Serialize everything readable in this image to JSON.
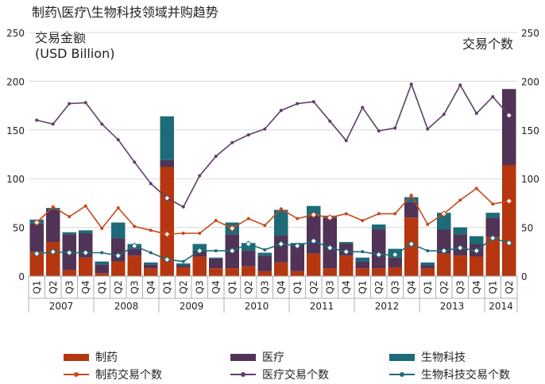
{
  "chart_data": {
    "type": "bar",
    "title": "制药\\医疗\\生物科技领域并购趋势",
    "ylabel_left": [
      "交易金额",
      "(USD Billion)"
    ],
    "ylabel_right": "交易个数",
    "ylim_left": [
      0,
      250
    ],
    "ylim_right": [
      0,
      250
    ],
    "yticks_left": [
      "0",
      "50",
      "100",
      "150",
      "200",
      "250"
    ],
    "yticks_right": [
      "0",
      "50",
      "100",
      "150",
      "200",
      "250"
    ],
    "stacked": true,
    "categories": [
      "Q1",
      "Q2",
      "Q3",
      "Q4",
      "Q1",
      "Q2",
      "Q3",
      "Q4",
      "Q1",
      "Q2",
      "Q3",
      "Q4",
      "Q1",
      "Q2",
      "Q3",
      "Q4",
      "Q1",
      "Q2",
      "Q3",
      "Q4",
      "Q1",
      "Q2",
      "Q3",
      "Q4",
      "Q1",
      "Q2",
      "Q3",
      "Q4",
      "Q1",
      "Q2"
    ],
    "year_groups": [
      {
        "label": "2007",
        "count": 4
      },
      {
        "label": "2008",
        "count": 4
      },
      {
        "label": "2009",
        "count": 4
      },
      {
        "label": "2010",
        "count": 4
      },
      {
        "label": "2011",
        "count": 4
      },
      {
        "label": "2012",
        "count": 4
      },
      {
        "label": "2013",
        "count": 4
      },
      {
        "label": "2014",
        "count": 2
      }
    ],
    "bar_series": [
      {
        "name": "制药",
        "color": "#b5360f",
        "values": [
          25,
          35,
          6,
          19,
          3,
          15,
          21,
          8,
          112,
          9,
          20,
          8,
          8,
          10,
          5,
          14,
          5,
          23,
          8,
          21,
          8,
          8,
          9,
          60,
          8,
          23,
          21,
          20,
          40,
          114
        ]
      },
      {
        "name": "医疗",
        "color": "#503356",
        "values": [
          29,
          33,
          37,
          25,
          9,
          24,
          7,
          4,
          7,
          2,
          6,
          10,
          35,
          16,
          16,
          28,
          28,
          40,
          52,
          12,
          7,
          40,
          10,
          16,
          3,
          25,
          22,
          13,
          20,
          78
        ]
      },
      {
        "name": "生物科技",
        "color": "#1d6b78",
        "values": [
          4,
          2,
          2,
          3,
          3,
          16,
          5,
          2,
          45,
          2,
          7,
          1,
          12,
          8,
          3,
          26,
          1,
          9,
          2,
          2,
          4,
          5,
          9,
          5,
          3,
          17,
          7,
          8,
          5,
          0
        ]
      }
    ],
    "line_series": [
      {
        "name": "制药交易个数",
        "color": "#c8491c",
        "values": [
          55,
          71,
          61,
          72,
          49,
          70,
          51,
          47,
          43,
          44,
          44,
          57,
          49,
          59,
          52,
          69,
          59,
          63,
          60,
          64,
          57,
          64,
          64,
          83,
          53,
          64,
          78,
          90,
          74,
          77
        ]
      },
      {
        "name": "医疗交易个数",
        "color": "#5f3f66",
        "values": [
          160,
          156,
          177,
          178,
          156,
          140,
          117,
          95,
          80,
          71,
          103,
          123,
          137,
          145,
          151,
          170,
          177,
          179,
          159,
          139,
          173,
          149,
          152,
          197,
          151,
          166,
          196,
          167,
          184,
          165
        ]
      },
      {
        "name": "生物科技交易个数",
        "color": "#1d6b78",
        "values": [
          23,
          25,
          24,
          24,
          24,
          21,
          31,
          24,
          17,
          15,
          26,
          26,
          26,
          33,
          27,
          33,
          31,
          36,
          29,
          25,
          25,
          22,
          22,
          33,
          26,
          26,
          29,
          26,
          39,
          34
        ]
      }
    ]
  }
}
